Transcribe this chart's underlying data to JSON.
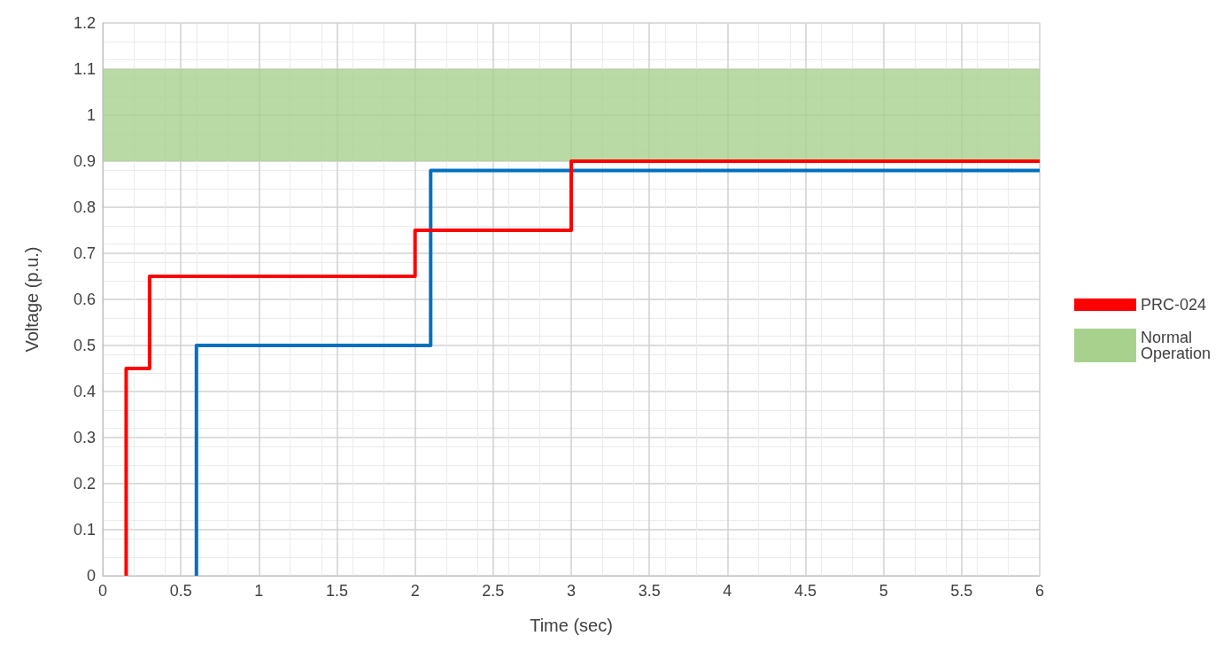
{
  "chart_data": {
    "type": "step",
    "xlabel": "Time (sec)",
    "ylabel": "Voltage (p.u.)",
    "xlim": [
      0,
      6
    ],
    "xticks": [
      0,
      0.5,
      1,
      1.5,
      2,
      2.5,
      3,
      3.5,
      4,
      4.5,
      5,
      5.5,
      6
    ],
    "ylim": [
      0,
      1.2
    ],
    "yticks": [
      0,
      0.1,
      0.2,
      0.3,
      0.4,
      0.5,
      0.6,
      0.7,
      0.8,
      0.9,
      1,
      1.1,
      1.2
    ],
    "grid": true,
    "legend": "right",
    "series": [
      {
        "color": "#0070c0",
        "x": [
          0.6,
          0.6,
          2.1,
          6
        ],
        "values": [
          0,
          0.5,
          0.88,
          0.88
        ]
      },
      {
        "name": "PRC-024",
        "color": "#ff0000",
        "x": [
          0.15,
          0.15,
          0.3,
          2,
          3,
          6
        ],
        "values": [
          0,
          0.45,
          0.65,
          0.75,
          0.9,
          0.9
        ]
      }
    ],
    "bands": [
      {
        "axis": "y",
        "from": 0.9,
        "to": 1.1,
        "label": "Normal Operation",
        "color": "#a9d18e"
      }
    ]
  }
}
